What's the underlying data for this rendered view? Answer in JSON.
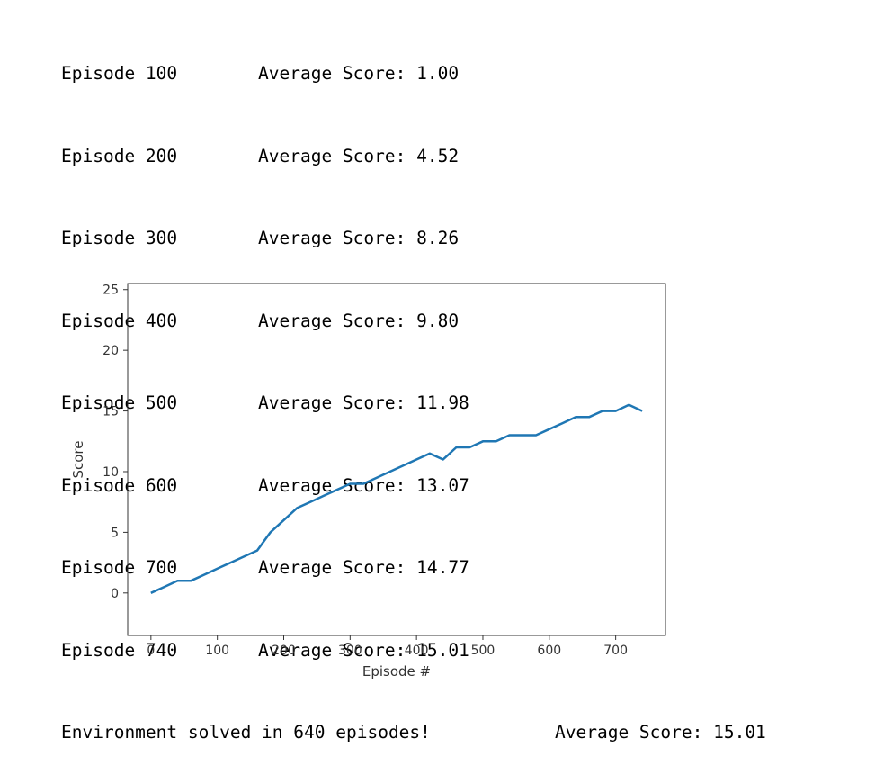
{
  "log": {
    "episodes": [
      {
        "episode": "Episode 100",
        "score": "Average Score: 1.00"
      },
      {
        "episode": "Episode 200",
        "score": "Average Score: 4.52"
      },
      {
        "episode": "Episode 300",
        "score": "Average Score: 8.26"
      },
      {
        "episode": "Episode 400",
        "score": "Average Score: 9.80"
      },
      {
        "episode": "Episode 500",
        "score": "Average Score: 11.98"
      },
      {
        "episode": "Episode 600",
        "score": "Average Score: 13.07"
      },
      {
        "episode": "Episode 700",
        "score": "Average Score: 14.77"
      },
      {
        "episode": "Episode 740",
        "score": "Average Score: 15.01"
      }
    ],
    "solved_message": "Environment solved in 640 episodes!",
    "solved_score": "Average Score: 15.01"
  },
  "chart_data": {
    "type": "line",
    "xlabel": "Episode #",
    "ylabel": "Score",
    "xlim": [
      -35,
      775
    ],
    "ylim": [
      -3.5,
      25.5
    ],
    "xticks": [
      0,
      100,
      200,
      300,
      400,
      500,
      600,
      700
    ],
    "yticks": [
      0,
      5,
      10,
      15,
      20,
      25
    ],
    "grid": false,
    "line_color": "#1f77b4",
    "series": [
      {
        "x": [
          0,
          20,
          40,
          60,
          80,
          100,
          120,
          140,
          160,
          180,
          200,
          220,
          240,
          260,
          280,
          300,
          320,
          340,
          360,
          380,
          400,
          420,
          440,
          460,
          480,
          500,
          520,
          540,
          560,
          580,
          600,
          620,
          640,
          660,
          680,
          700,
          720,
          740
        ],
        "values": [
          0,
          0.5,
          1,
          1,
          1.5,
          2,
          2.5,
          3,
          3.5,
          5,
          6,
          7,
          7.5,
          8,
          8.5,
          9,
          9,
          9.5,
          10,
          10.5,
          11,
          11.5,
          11,
          12,
          12,
          12.5,
          12.5,
          13,
          13,
          13,
          13.5,
          14,
          14.5,
          14.5,
          15,
          15,
          15.5,
          15
        ]
      }
    ]
  }
}
